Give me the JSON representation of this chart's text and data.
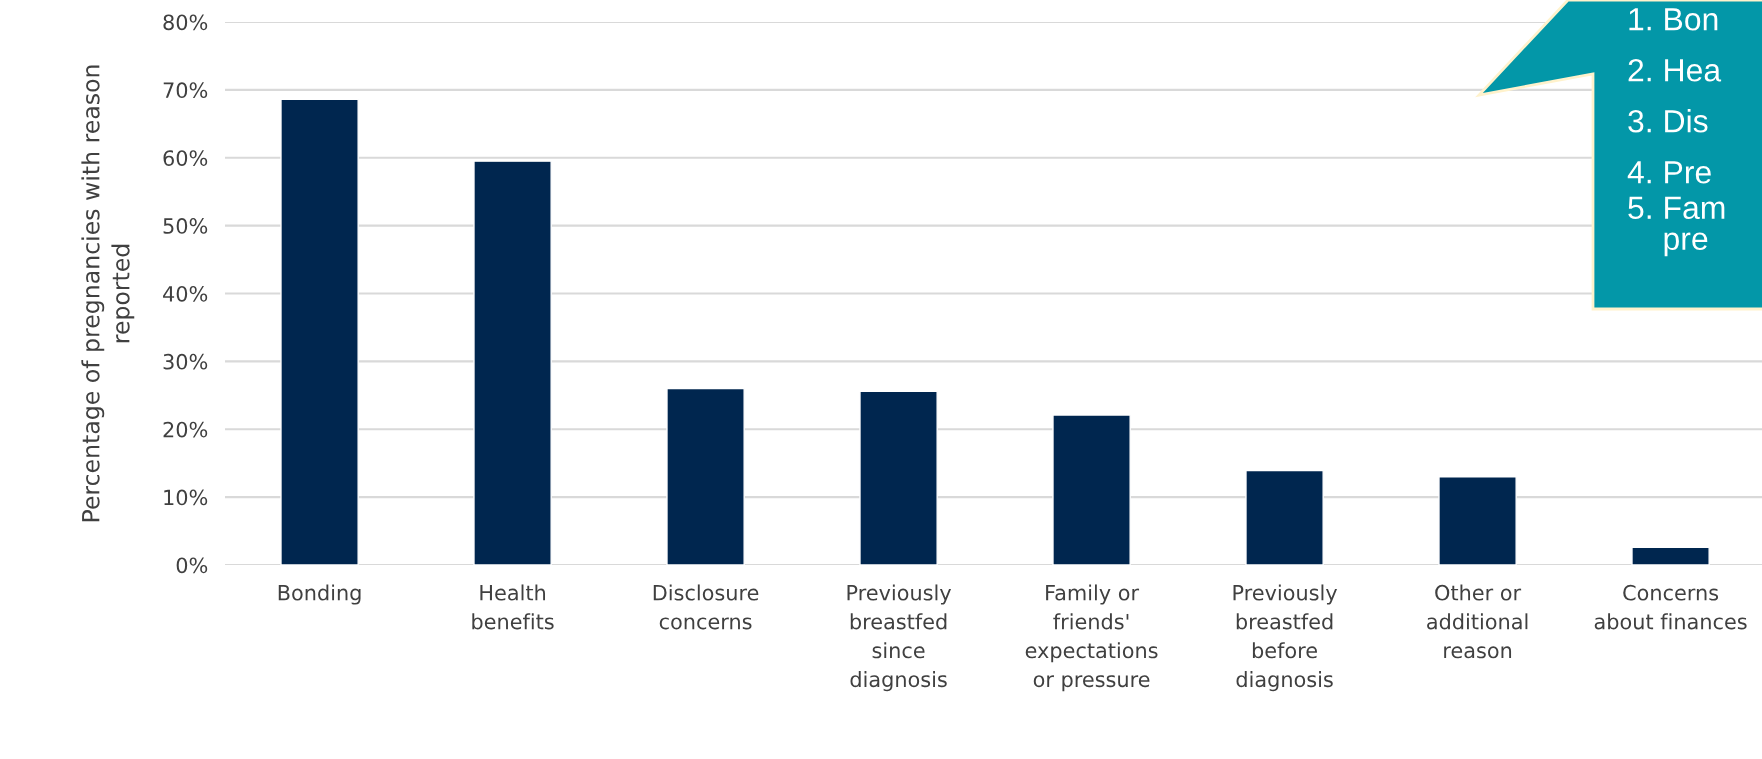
{
  "chart_data": {
    "type": "bar",
    "categories": [
      "Bonding",
      "Health\nbenefits",
      "Disclosure\nconcerns",
      "Previously\nbreastfed\nsince\ndiagnosis",
      "Family or\nfriends'\nexpectations\nor pressure",
      "Previously\nbreastfed\nbefore\ndiagnosis",
      "Other or\nadditional\nreason",
      "Concerns\nabout finances"
    ],
    "values": [
      68.6,
      59.5,
      26.0,
      25.6,
      22.1,
      13.9,
      13.0,
      2.6
    ],
    "color": "#00264f",
    "ylabel": "Percentage of pregnancies with reason\nreported",
    "ylim": [
      0,
      80
    ],
    "yticks": [
      {
        "value": 0,
        "label": "0%"
      },
      {
        "value": 10,
        "label": "10%"
      },
      {
        "value": 20,
        "label": "20%"
      },
      {
        "value": 30,
        "label": "30%"
      },
      {
        "value": 40,
        "label": "40%"
      },
      {
        "value": 50,
        "label": "50%"
      },
      {
        "value": 60,
        "label": "60%"
      },
      {
        "value": 70,
        "label": "70%"
      },
      {
        "value": 80,
        "label": "80%"
      }
    ],
    "grid": "y",
    "annotations": [
      "1. Bon",
      "2. Hea",
      "3. Dis",
      "4. Pre",
      "5. Fam\n    pre"
    ]
  }
}
